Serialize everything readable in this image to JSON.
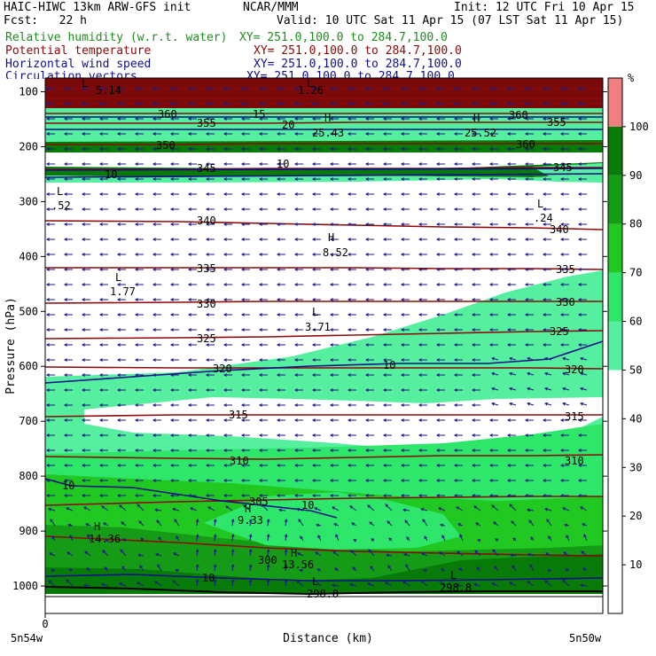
{
  "header": {
    "model": "HAIC-HIWC 13km ARW-GFS init",
    "org": "NCAR/MMM",
    "init": "Init: 12 UTC Fri 10 Apr 15",
    "fcst": "Fcst:   22 h",
    "valid": "Valid: 10 UTC Sat 11 Apr 15 (07 LST Sat 11 Apr 15)",
    "fields": [
      {
        "name": "Relative humidity (w.r.t. water)",
        "xy": "XY= 251.0,100.0 to 284.7,100.0",
        "color": "#1f8c1f"
      },
      {
        "name": "Potential temperature",
        "xy": "XY= 251.0,100.0 to 284.7,100.0",
        "color": "#8b0a0a"
      },
      {
        "name": "Horizontal wind speed",
        "xy": "XY= 251.0,100.0 to 284.7,100.0",
        "color": "#10108a"
      },
      {
        "name": "Circulation vectors",
        "xy": "XY= 251.0,100.0 to 284.7,100.0",
        "color": "#10108a"
      }
    ]
  },
  "chart_data": {
    "type": "cross-section",
    "xlabel": "Distance (km)",
    "ylabel": "Pressure (hPa)",
    "x_origin_label": "0",
    "x_end_labels": [
      "5n54w",
      "5n50w"
    ],
    "y_ticks": [
      100,
      200,
      300,
      400,
      500,
      600,
      700,
      800,
      900,
      1000
    ],
    "ylim": [
      1050,
      75
    ],
    "colorbar": {
      "unit": "%",
      "ticks": [
        10,
        20,
        30,
        40,
        50,
        60,
        70,
        80,
        90,
        100
      ],
      "colors": [
        "#ffffff",
        "#ffffff",
        "#ffffff",
        "#ffffff",
        "#ffffff",
        "#55ef9f",
        "#2ee66a",
        "#22c822",
        "#159b15",
        "#087a08",
        "#f08080"
      ]
    },
    "theta_labels": [
      "300",
      "305",
      "310",
      "315",
      "320",
      "325",
      "330",
      "335",
      "340",
      "345",
      "350",
      "355",
      "360"
    ],
    "wind_labels": [
      "10",
      "10",
      "10",
      "15",
      "20",
      "10",
      "10",
      "10"
    ],
    "extrema": [
      {
        "kind": "H",
        "value": "25.43"
      },
      {
        "kind": "H",
        "value": "25.52"
      },
      {
        "kind": "L",
        "value": "5.14"
      },
      {
        "kind": "L",
        "value": "1.26"
      },
      {
        "kind": "L",
        "value": ".52"
      },
      {
        "kind": "L",
        "value": ".24"
      },
      {
        "kind": "H",
        "value": "8.52"
      },
      {
        "kind": "L",
        "value": "1.77"
      },
      {
        "kind": "L",
        "value": "3.71"
      },
      {
        "kind": "H",
        "value": "9.33"
      },
      {
        "kind": "H",
        "value": "14.36"
      },
      {
        "kind": "H",
        "value": "13.56"
      },
      {
        "kind": "L",
        "value": "298.8"
      },
      {
        "kind": "L",
        "value": "298.8"
      }
    ],
    "rh_field": [
      {
        "level_top_hpa": 1010,
        "level_bottom_hpa": 975,
        "rh": 93
      },
      {
        "level_top_hpa": 975,
        "level_bottom_hpa": 930,
        "rh": 84
      },
      {
        "level_top_hpa": 930,
        "level_bottom_hpa": 840,
        "rh": 75
      },
      {
        "level_top_hpa": 840,
        "level_bottom_hpa": 760,
        "rh": 65
      },
      {
        "level_top_hpa": 760,
        "level_bottom_hpa": 600,
        "rh": 55
      },
      {
        "level_top_hpa": 210,
        "level_bottom_hpa": 165,
        "rh": 93
      },
      {
        "level_top_hpa": 165,
        "level_bottom_hpa": 120,
        "rh": 55
      },
      {
        "level_top_hpa": 120,
        "level_bottom_hpa": 75,
        "rh": 100
      }
    ]
  }
}
